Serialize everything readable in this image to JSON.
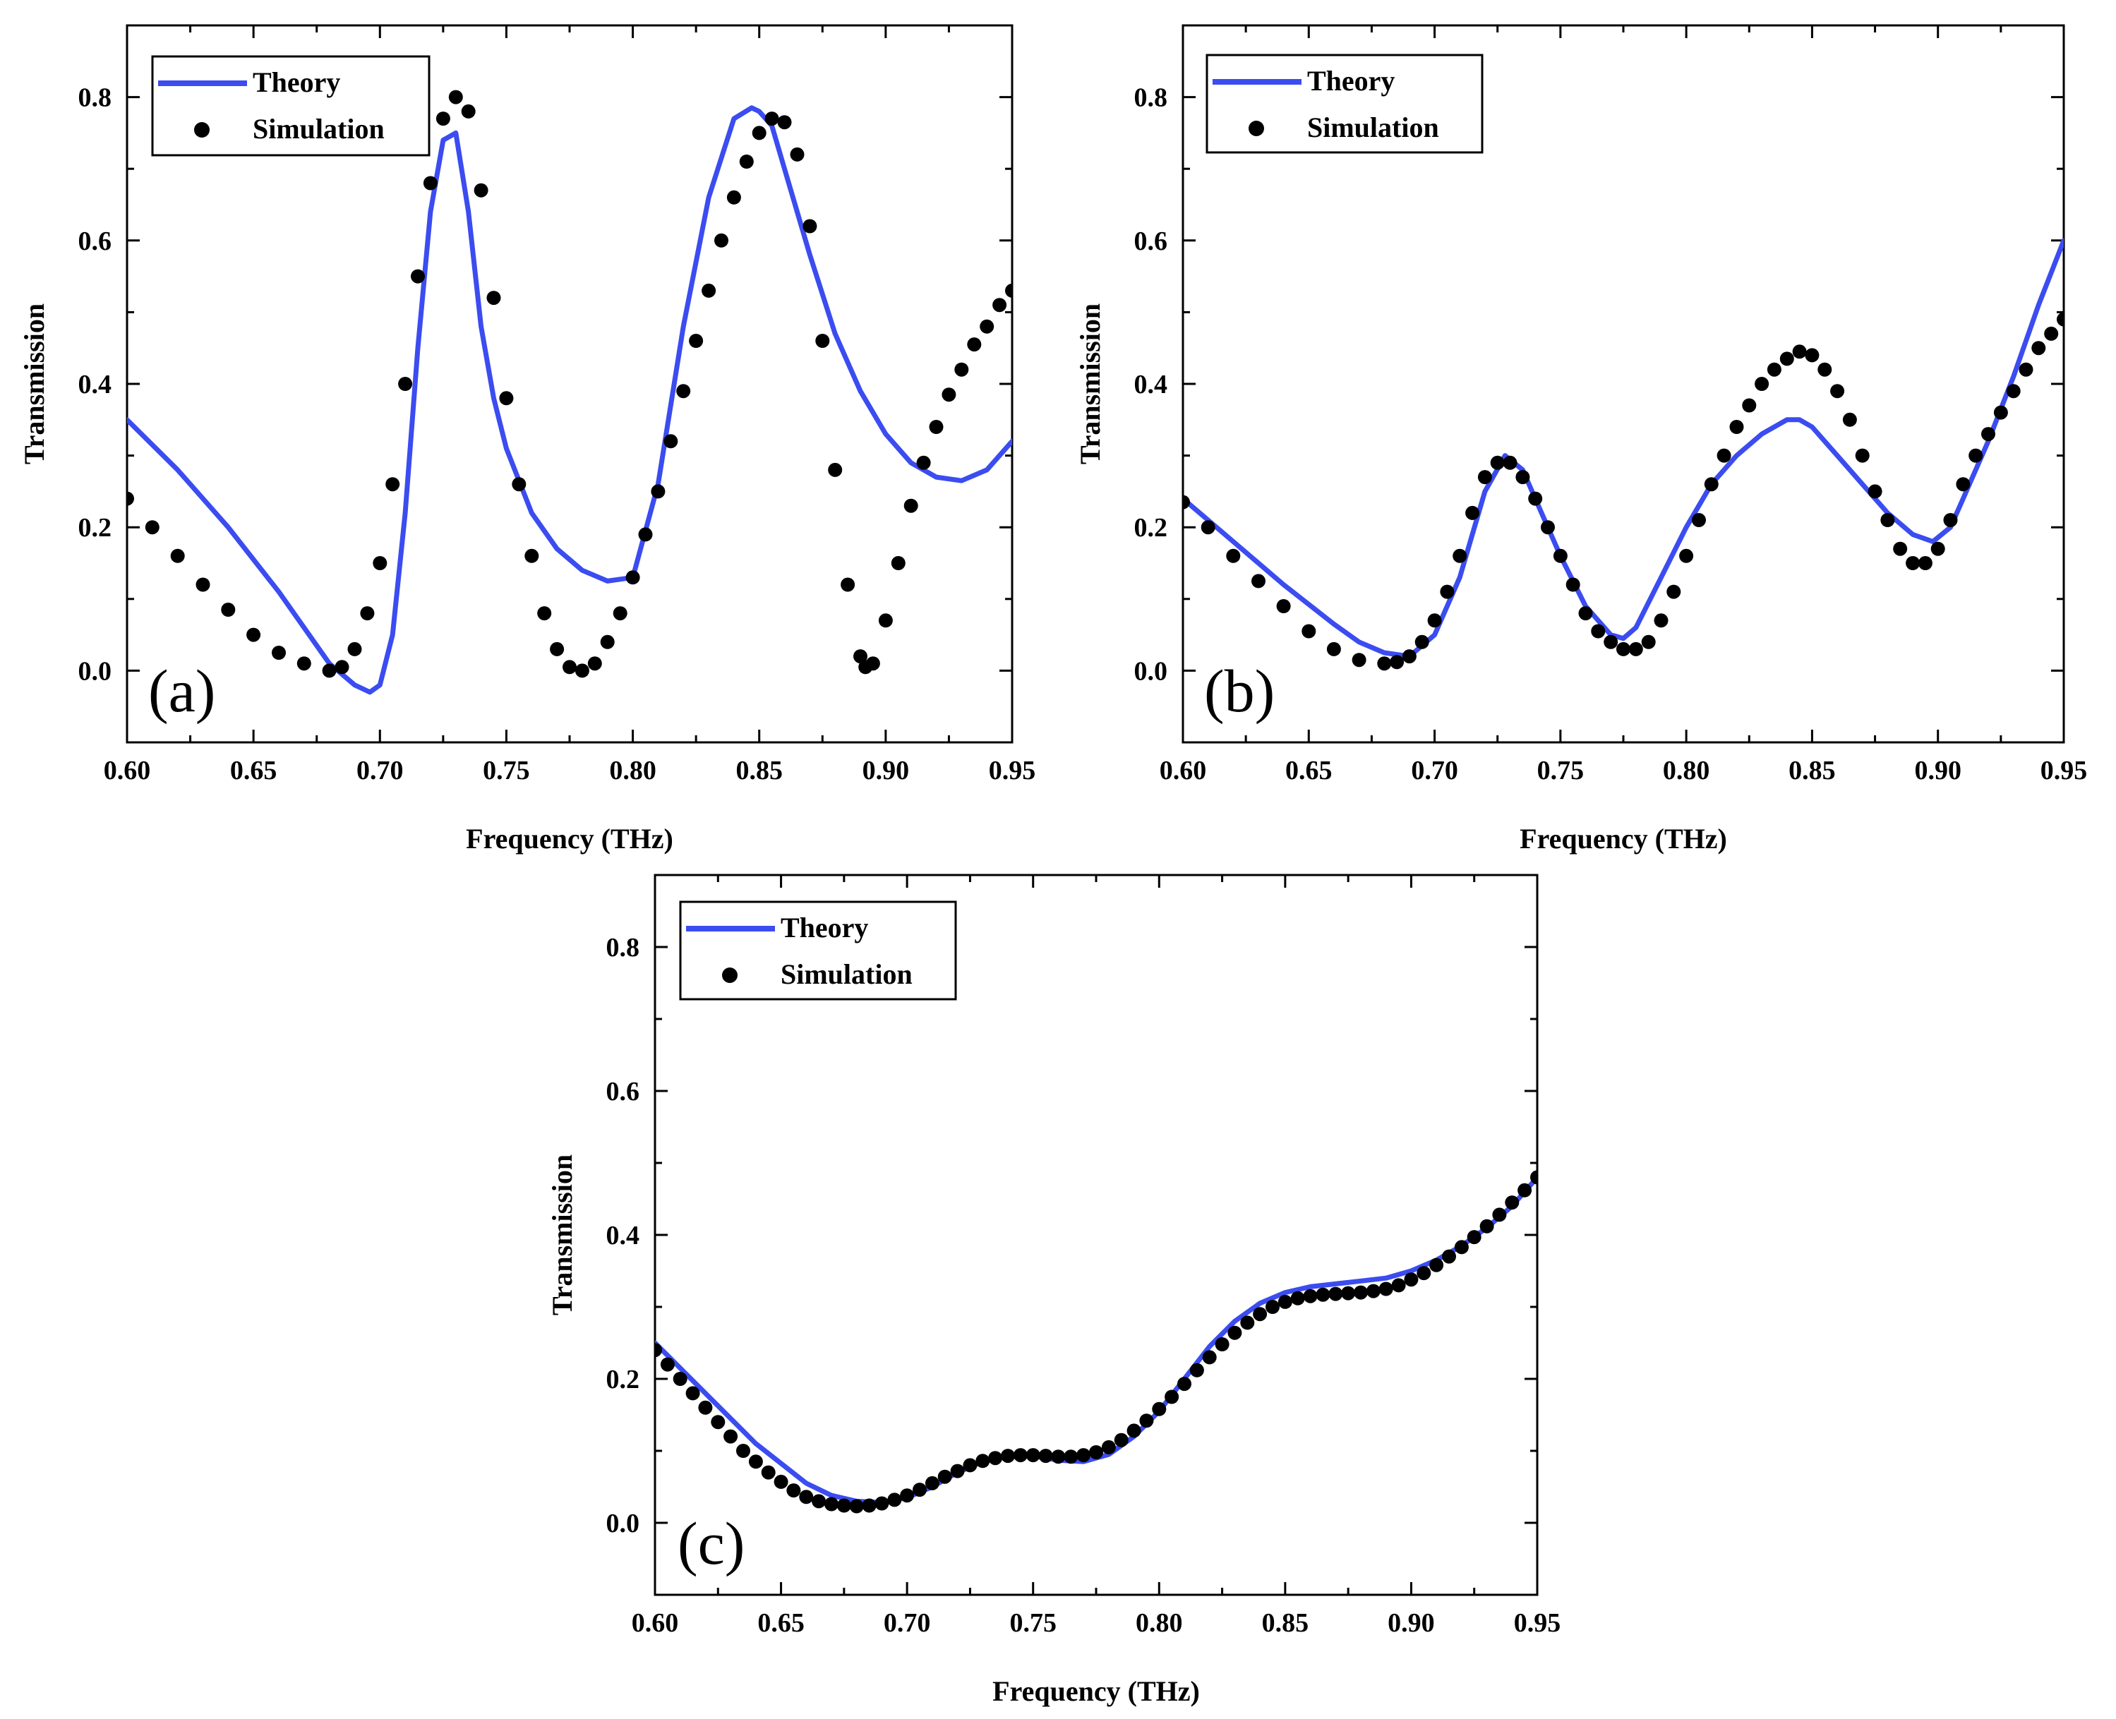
{
  "figure": {
    "colors": {
      "theory": "#3b4cf0",
      "simulation": "#000000",
      "axis": "#000000",
      "background": "#ffffff"
    }
  },
  "chart_data": [
    {
      "type": "line",
      "panel_label": "(a)",
      "xlabel": "Frequency (THz)",
      "ylabel": "Transmission",
      "xlim": [
        0.6,
        0.95
      ],
      "ylim": [
        -0.1,
        0.9
      ],
      "xticks": [
        0.6,
        0.65,
        0.7,
        0.75,
        0.8,
        0.85,
        0.9,
        0.95
      ],
      "xtick_labels": [
        "0.60",
        "0.65",
        "0.70",
        "0.75",
        "0.80",
        "0.85",
        "0.90",
        "0.95"
      ],
      "yticks": [
        0.0,
        0.2,
        0.4,
        0.6,
        0.8
      ],
      "ytick_labels": [
        "0.0",
        "0.2",
        "0.4",
        "0.6",
        "0.8"
      ],
      "legend": {
        "position": "top-left",
        "entries": [
          "Theory",
          "Simulation"
        ]
      },
      "series": [
        {
          "name": "Theory",
          "style": "line",
          "x": [
            0.6,
            0.62,
            0.64,
            0.66,
            0.67,
            0.68,
            0.69,
            0.696,
            0.7,
            0.705,
            0.71,
            0.715,
            0.72,
            0.725,
            0.73,
            0.735,
            0.74,
            0.745,
            0.75,
            0.76,
            0.77,
            0.78,
            0.79,
            0.8,
            0.81,
            0.82,
            0.83,
            0.84,
            0.847,
            0.85,
            0.855,
            0.86,
            0.87,
            0.88,
            0.89,
            0.9,
            0.91,
            0.92,
            0.93,
            0.94,
            0.95
          ],
          "y": [
            0.35,
            0.28,
            0.2,
            0.11,
            0.06,
            0.01,
            -0.02,
            -0.03,
            -0.02,
            0.05,
            0.22,
            0.45,
            0.64,
            0.74,
            0.75,
            0.64,
            0.48,
            0.38,
            0.31,
            0.22,
            0.17,
            0.14,
            0.125,
            0.13,
            0.26,
            0.48,
            0.66,
            0.77,
            0.785,
            0.78,
            0.76,
            0.7,
            0.58,
            0.47,
            0.39,
            0.33,
            0.29,
            0.27,
            0.265,
            0.28,
            0.32
          ]
        },
        {
          "name": "Simulation",
          "style": "markers",
          "x": [
            0.6,
            0.61,
            0.62,
            0.63,
            0.64,
            0.65,
            0.66,
            0.67,
            0.68,
            0.685,
            0.69,
            0.695,
            0.7,
            0.705,
            0.71,
            0.715,
            0.72,
            0.725,
            0.73,
            0.735,
            0.74,
            0.745,
            0.75,
            0.755,
            0.76,
            0.765,
            0.77,
            0.775,
            0.78,
            0.785,
            0.79,
            0.795,
            0.8,
            0.805,
            0.81,
            0.815,
            0.82,
            0.825,
            0.83,
            0.835,
            0.84,
            0.845,
            0.85,
            0.855,
            0.86,
            0.865,
            0.87,
            0.875,
            0.88,
            0.885,
            0.89,
            0.892,
            0.895,
            0.9,
            0.905,
            0.91,
            0.915,
            0.92,
            0.925,
            0.93,
            0.935,
            0.94,
            0.945,
            0.95
          ],
          "y": [
            0.24,
            0.2,
            0.16,
            0.12,
            0.085,
            0.05,
            0.025,
            0.01,
            0.0,
            0.005,
            0.03,
            0.08,
            0.15,
            0.26,
            0.4,
            0.55,
            0.68,
            0.77,
            0.8,
            0.78,
            0.67,
            0.52,
            0.38,
            0.26,
            0.16,
            0.08,
            0.03,
            0.005,
            0.0,
            0.01,
            0.04,
            0.08,
            0.13,
            0.19,
            0.25,
            0.32,
            0.39,
            0.46,
            0.53,
            0.6,
            0.66,
            0.71,
            0.75,
            0.77,
            0.765,
            0.72,
            0.62,
            0.46,
            0.28,
            0.12,
            0.02,
            0.005,
            0.01,
            0.07,
            0.15,
            0.23,
            0.29,
            0.34,
            0.385,
            0.42,
            0.455,
            0.48,
            0.51,
            0.53
          ]
        }
      ]
    },
    {
      "type": "line",
      "panel_label": "(b)",
      "xlabel": "Frequency (THz)",
      "ylabel": "Transmission",
      "xlim": [
        0.6,
        0.95
      ],
      "ylim": [
        -0.1,
        0.9
      ],
      "xticks": [
        0.6,
        0.65,
        0.7,
        0.75,
        0.8,
        0.85,
        0.9,
        0.95
      ],
      "xtick_labels": [
        "0.60",
        "0.65",
        "0.70",
        "0.75",
        "0.80",
        "0.85",
        "0.90",
        "0.95"
      ],
      "yticks": [
        0.0,
        0.2,
        0.4,
        0.6,
        0.8
      ],
      "ytick_labels": [
        "0.0",
        "0.2",
        "0.4",
        "0.6",
        "0.8"
      ],
      "legend": {
        "position": "top-left",
        "entries": [
          "Theory",
          "Simulation"
        ]
      },
      "series": [
        {
          "name": "Theory",
          "style": "line",
          "x": [
            0.6,
            0.62,
            0.64,
            0.66,
            0.67,
            0.68,
            0.69,
            0.7,
            0.71,
            0.72,
            0.728,
            0.735,
            0.74,
            0.75,
            0.76,
            0.77,
            0.775,
            0.78,
            0.79,
            0.8,
            0.81,
            0.82,
            0.83,
            0.84,
            0.845,
            0.85,
            0.86,
            0.87,
            0.88,
            0.89,
            0.898,
            0.905,
            0.91,
            0.92,
            0.93,
            0.94,
            0.95
          ],
          "y": [
            0.24,
            0.18,
            0.12,
            0.065,
            0.04,
            0.025,
            0.02,
            0.05,
            0.13,
            0.25,
            0.3,
            0.28,
            0.24,
            0.16,
            0.09,
            0.05,
            0.045,
            0.06,
            0.13,
            0.2,
            0.26,
            0.3,
            0.33,
            0.35,
            0.35,
            0.34,
            0.3,
            0.26,
            0.22,
            0.19,
            0.18,
            0.2,
            0.24,
            0.32,
            0.41,
            0.51,
            0.6
          ]
        },
        {
          "name": "Simulation",
          "style": "markers",
          "x": [
            0.6,
            0.61,
            0.62,
            0.63,
            0.64,
            0.65,
            0.66,
            0.67,
            0.68,
            0.685,
            0.69,
            0.695,
            0.7,
            0.705,
            0.71,
            0.715,
            0.72,
            0.725,
            0.73,
            0.735,
            0.74,
            0.745,
            0.75,
            0.755,
            0.76,
            0.765,
            0.77,
            0.775,
            0.78,
            0.785,
            0.79,
            0.795,
            0.8,
            0.805,
            0.81,
            0.815,
            0.82,
            0.825,
            0.83,
            0.835,
            0.84,
            0.845,
            0.85,
            0.855,
            0.86,
            0.865,
            0.87,
            0.875,
            0.88,
            0.885,
            0.89,
            0.895,
            0.9,
            0.905,
            0.91,
            0.915,
            0.92,
            0.925,
            0.93,
            0.935,
            0.94,
            0.945,
            0.95
          ],
          "y": [
            0.235,
            0.2,
            0.16,
            0.125,
            0.09,
            0.055,
            0.03,
            0.015,
            0.01,
            0.012,
            0.02,
            0.04,
            0.07,
            0.11,
            0.16,
            0.22,
            0.27,
            0.29,
            0.29,
            0.27,
            0.24,
            0.2,
            0.16,
            0.12,
            0.08,
            0.055,
            0.04,
            0.03,
            0.03,
            0.04,
            0.07,
            0.11,
            0.16,
            0.21,
            0.26,
            0.3,
            0.34,
            0.37,
            0.4,
            0.42,
            0.435,
            0.445,
            0.44,
            0.42,
            0.39,
            0.35,
            0.3,
            0.25,
            0.21,
            0.17,
            0.15,
            0.15,
            0.17,
            0.21,
            0.26,
            0.3,
            0.33,
            0.36,
            0.39,
            0.42,
            0.45,
            0.47,
            0.49
          ]
        }
      ]
    },
    {
      "type": "line",
      "panel_label": "(c)",
      "xlabel": "Frequency (THz)",
      "ylabel": "Transmission",
      "xlim": [
        0.6,
        0.95
      ],
      "ylim": [
        -0.1,
        0.9
      ],
      "xticks": [
        0.6,
        0.65,
        0.7,
        0.75,
        0.8,
        0.85,
        0.9,
        0.95
      ],
      "xtick_labels": [
        "0.60",
        "0.65",
        "0.70",
        "0.75",
        "0.80",
        "0.85",
        "0.90",
        "0.95"
      ],
      "yticks": [
        0.0,
        0.2,
        0.4,
        0.6,
        0.8
      ],
      "ytick_labels": [
        "0.0",
        "0.2",
        "0.4",
        "0.6",
        "0.8"
      ],
      "legend": {
        "position": "top-left",
        "entries": [
          "Theory",
          "Simulation"
        ]
      },
      "series": [
        {
          "name": "Theory",
          "style": "line",
          "x": [
            0.6,
            0.62,
            0.64,
            0.66,
            0.67,
            0.68,
            0.69,
            0.7,
            0.71,
            0.72,
            0.73,
            0.74,
            0.75,
            0.76,
            0.77,
            0.78,
            0.79,
            0.8,
            0.81,
            0.82,
            0.83,
            0.84,
            0.85,
            0.86,
            0.87,
            0.88,
            0.89,
            0.9,
            0.91,
            0.92,
            0.93,
            0.94,
            0.95
          ],
          "y": [
            0.25,
            0.18,
            0.11,
            0.055,
            0.038,
            0.03,
            0.028,
            0.035,
            0.05,
            0.07,
            0.085,
            0.092,
            0.093,
            0.087,
            0.085,
            0.095,
            0.12,
            0.155,
            0.2,
            0.245,
            0.28,
            0.305,
            0.32,
            0.328,
            0.332,
            0.336,
            0.34,
            0.35,
            0.365,
            0.385,
            0.41,
            0.44,
            0.48
          ]
        },
        {
          "name": "Simulation",
          "style": "markers",
          "x": [
            0.6,
            0.605,
            0.61,
            0.615,
            0.62,
            0.625,
            0.63,
            0.635,
            0.64,
            0.645,
            0.65,
            0.655,
            0.66,
            0.665,
            0.67,
            0.675,
            0.68,
            0.685,
            0.69,
            0.695,
            0.7,
            0.705,
            0.71,
            0.715,
            0.72,
            0.725,
            0.73,
            0.735,
            0.74,
            0.745,
            0.75,
            0.755,
            0.76,
            0.765,
            0.77,
            0.775,
            0.78,
            0.785,
            0.79,
            0.795,
            0.8,
            0.805,
            0.81,
            0.815,
            0.82,
            0.825,
            0.83,
            0.835,
            0.84,
            0.845,
            0.85,
            0.855,
            0.86,
            0.865,
            0.87,
            0.875,
            0.88,
            0.885,
            0.89,
            0.895,
            0.9,
            0.905,
            0.91,
            0.915,
            0.92,
            0.925,
            0.93,
            0.935,
            0.94,
            0.945,
            0.95
          ],
          "y": [
            0.24,
            0.22,
            0.2,
            0.18,
            0.16,
            0.14,
            0.12,
            0.1,
            0.085,
            0.07,
            0.057,
            0.045,
            0.036,
            0.03,
            0.026,
            0.024,
            0.023,
            0.024,
            0.027,
            0.032,
            0.038,
            0.046,
            0.055,
            0.064,
            0.072,
            0.08,
            0.086,
            0.09,
            0.093,
            0.094,
            0.094,
            0.093,
            0.092,
            0.092,
            0.094,
            0.098,
            0.105,
            0.115,
            0.128,
            0.142,
            0.158,
            0.175,
            0.193,
            0.212,
            0.23,
            0.248,
            0.264,
            0.278,
            0.29,
            0.3,
            0.307,
            0.312,
            0.315,
            0.317,
            0.318,
            0.319,
            0.32,
            0.322,
            0.325,
            0.33,
            0.338,
            0.347,
            0.358,
            0.37,
            0.383,
            0.397,
            0.412,
            0.428,
            0.445,
            0.462,
            0.48
          ]
        }
      ]
    }
  ]
}
